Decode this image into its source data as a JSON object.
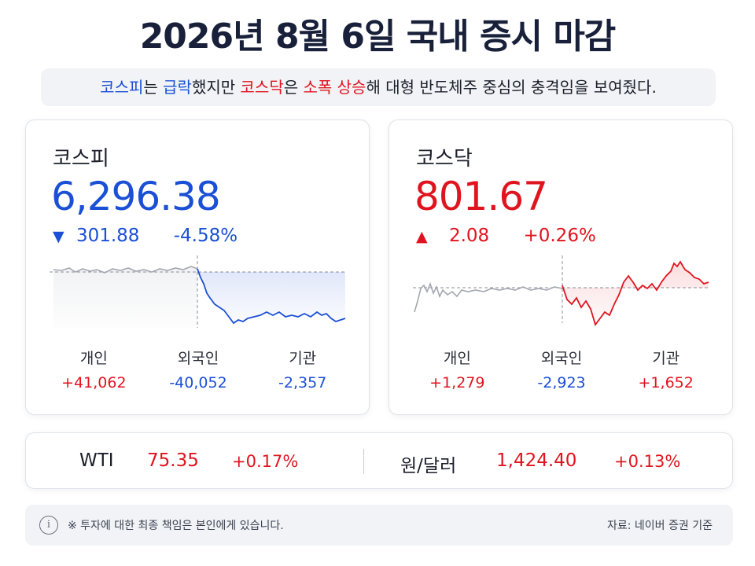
{
  "title": "2026년 8월 6일 국내 증시 마감",
  "summary": {
    "kospi": "코스피",
    "t1": "는 ",
    "plunge": "급락",
    "t2": "했지만 ",
    "kosdaq": "코스닥",
    "t3": "은 ",
    "rise": "소폭 상승",
    "t4": "해 대형 반도체주 중심의 충격임을 보여줬다."
  },
  "kospi": {
    "name": "코스피",
    "value": "6,296.38",
    "arrow": "▼",
    "change": "301.88",
    "pct": "-4.58%",
    "investors": [
      {
        "label": "개인",
        "value": "+41,062",
        "dir": "up"
      },
      {
        "label": "외국인",
        "value": "-40,052",
        "dir": "down"
      },
      {
        "label": "기관",
        "value": "-2,357",
        "dir": "down"
      }
    ]
  },
  "kosdaq": {
    "name": "코스닥",
    "value": "801.67",
    "arrow": "▲",
    "change": "2.08",
    "pct": "+0.26%",
    "investors": [
      {
        "label": "개인",
        "value": "+1,279",
        "dir": "up"
      },
      {
        "label": "외국인",
        "value": "-2,923",
        "dir": "down"
      },
      {
        "label": "기관",
        "value": "+1,652",
        "dir": "up"
      }
    ]
  },
  "commodities": {
    "wti_label": "WTI",
    "wti_value": "75.35",
    "wti_pct": "+0.17%",
    "fx_label": "원/달러",
    "fx_value": "1,424.40",
    "fx_pct": "+0.13%"
  },
  "footer": {
    "icon": "info-icon",
    "icon_glyph": "i",
    "note": "※ 투자에 대한 최종 책임은 본인에게 있습니다.",
    "source": "자료: 네이버 증권 기준"
  },
  "colors": {
    "down": "#1a4fd6",
    "up": "#e0141e",
    "title": "#18203a",
    "neutral_line": "#9ca3af"
  }
}
